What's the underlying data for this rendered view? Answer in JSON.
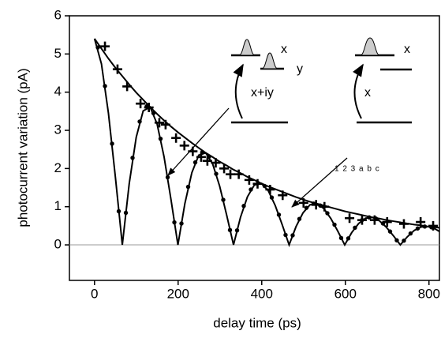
{
  "chart_data": {
    "type": "scatter",
    "x_label": "delay time (ps)",
    "y_label": "photocurrent variation (pA)",
    "xlim": [
      -60,
      825
    ],
    "ylim": [
      -0.93,
      6
    ],
    "xticks": [
      0,
      200,
      400,
      600,
      800
    ],
    "yticks": [
      0,
      1,
      2,
      3,
      4,
      5,
      6
    ],
    "zero_line": 0,
    "series": [
      {
        "marker": "plus",
        "color": "#000000",
        "x": [
          25,
          55,
          78,
          110,
          130,
          155,
          170,
          195,
          215,
          235,
          255,
          270,
          290,
          310,
          325,
          345,
          370,
          390,
          420,
          450,
          500,
          530,
          550,
          610,
          640,
          670,
          700,
          740,
          780,
          810
        ],
        "values": [
          5.2,
          4.6,
          4.15,
          3.7,
          3.6,
          3.2,
          3.15,
          2.8,
          2.6,
          2.45,
          2.3,
          2.2,
          2.15,
          2.0,
          1.85,
          1.85,
          1.7,
          1.6,
          1.45,
          1.3,
          1.1,
          1.05,
          1.0,
          0.7,
          0.65,
          0.65,
          0.6,
          0.55,
          0.6,
          0.5
        ]
      },
      {
        "marker": "dot",
        "color": "#000000",
        "x": [
          8,
          25,
          42,
          58,
          75,
          91,
          108,
          125,
          141,
          158,
          175,
          191,
          208,
          224,
          241,
          258,
          274,
          291,
          308,
          324,
          341,
          357,
          374,
          391,
          407,
          424,
          441,
          457,
          474,
          490,
          507,
          524,
          540,
          557,
          574,
          590,
          607,
          623,
          640,
          657,
          673,
          690,
          707,
          723,
          740,
          756,
          773,
          790,
          806
        ],
        "values": [
          5.17,
          4.16,
          2.65,
          0.88,
          0.84,
          2.28,
          3.23,
          3.63,
          3.45,
          2.78,
          1.77,
          0.59,
          0.56,
          1.52,
          2.16,
          2.43,
          2.31,
          1.86,
          1.18,
          0.39,
          0.38,
          1.02,
          1.45,
          1.62,
          1.54,
          1.24,
          0.79,
          0.26,
          0.25,
          0.68,
          0.97,
          1.08,
          1.03,
          0.83,
          0.53,
          0.18,
          0.17,
          0.45,
          0.65,
          0.72,
          0.69,
          0.56,
          0.35,
          0.12,
          0.11,
          0.3,
          0.43,
          0.48,
          0.46
        ]
      },
      {
        "marker": "line",
        "color": "#000000",
        "x": [
          0,
          16.6,
          33.3,
          49.9,
          66.5,
          83.1,
          99.8,
          116.4,
          133,
          149.6,
          166.3,
          182.9,
          199.5,
          216.1,
          232.8,
          249.4,
          266,
          282.6,
          299.3,
          315.9,
          332.5,
          349.1,
          365.8,
          382.4,
          399,
          415.6,
          432.3,
          448.9,
          465.5,
          482.1,
          498.8,
          515.4,
          532,
          548.6,
          565.3,
          581.9,
          598.5,
          615.1,
          631.8,
          648.4,
          665,
          681.6,
          698.3,
          714.9,
          731.5,
          748.1,
          764.8,
          781.4,
          798,
          814.6,
          831.3
        ],
        "values": [
          5.4,
          5.14,
          4.88,
          4.64,
          4.42,
          4.2,
          3.99,
          3.8,
          3.61,
          3.43,
          3.26,
          3.1,
          2.95,
          2.81,
          2.67,
          2.54,
          2.41,
          2.3,
          2.18,
          2.08,
          1.97,
          1.88,
          1.78,
          1.7,
          1.61,
          1.53,
          1.46,
          1.39,
          1.32,
          1.25,
          1.19,
          1.13,
          1.08,
          1.03,
          0.98,
          0.93,
          0.88,
          0.84,
          0.8,
          0.76,
          0.72,
          0.69,
          0.65,
          0.62,
          0.59,
          0.56,
          0.53,
          0.51,
          0.48,
          0.46,
          0.44
        ]
      },
      {
        "marker": "line",
        "color": "#000000",
        "x": [
          0,
          16.6,
          33.3,
          49.9,
          66.5,
          83.1,
          99.8,
          116.4,
          133,
          149.6,
          166.3,
          182.9,
          199.5,
          216.1,
          232.8,
          249.4,
          266,
          282.6,
          299.3,
          315.9,
          332.5,
          349.1,
          365.8,
          382.4,
          399,
          415.6,
          432.3,
          448.9,
          465.5,
          482.1,
          498.8,
          515.4,
          532,
          548.6,
          565.3,
          581.9,
          598.5,
          615.1,
          631.8,
          648.4,
          665,
          681.6,
          698.3,
          714.9,
          731.5,
          748.1,
          764.8,
          781.4,
          798,
          814.6,
          831.3
        ],
        "values": [
          5.4,
          4.74,
          3.45,
          1.78,
          0,
          1.61,
          2.82,
          3.51,
          3.61,
          3.17,
          2.31,
          1.19,
          0,
          1.08,
          1.89,
          2.35,
          2.41,
          2.12,
          1.54,
          0.79,
          0,
          0.72,
          1.26,
          1.57,
          1.61,
          1.42,
          1.03,
          0.53,
          0,
          0.48,
          0.84,
          1.05,
          1.08,
          0.95,
          0.69,
          0.36,
          0,
          0.32,
          0.56,
          0.7,
          0.72,
          0.63,
          0.46,
          0.24,
          0,
          0.21,
          0.38,
          0.47,
          0.48,
          0.42,
          0.31
        ]
      }
    ],
    "annotations": [
      "x",
      "y",
      "x+iy",
      "x",
      "x",
      "1 2 3 a b c"
    ]
  }
}
